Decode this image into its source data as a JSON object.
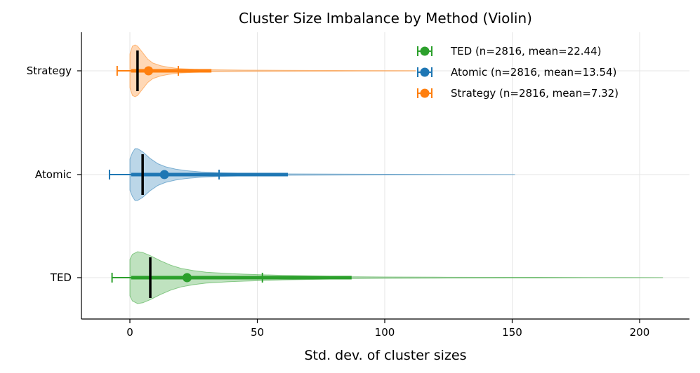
{
  "chart_data": {
    "type": "violin",
    "orientation": "horizontal",
    "title": "Cluster Size Imbalance by Method (Violin)",
    "xlabel": "Std. dev. of cluster sizes",
    "ylabel": "",
    "xlim": [
      -19,
      220
    ],
    "xticks": [
      0,
      50,
      100,
      150,
      200
    ],
    "grid": true,
    "legend_position": "top-right",
    "series": [
      {
        "name": "TED",
        "color": "#2ca02c",
        "n": 2816,
        "mean": 22.44,
        "median": 8,
        "ci_low": -7,
        "ci_high": 52,
        "iqr_low": 0.5,
        "iqr_high": 87,
        "max": 209,
        "legend": "TED (n=2816, mean=22.44)",
        "density": [
          [
            0,
            0.7
          ],
          [
            1,
            0.9
          ],
          [
            3,
            1.0
          ],
          [
            5,
            0.97
          ],
          [
            8,
            0.85
          ],
          [
            12,
            0.65
          ],
          [
            16,
            0.48
          ],
          [
            20,
            0.36
          ],
          [
            25,
            0.27
          ],
          [
            30,
            0.21
          ],
          [
            40,
            0.15
          ],
          [
            50,
            0.12
          ],
          [
            60,
            0.09
          ],
          [
            70,
            0.07
          ],
          [
            80,
            0.05
          ],
          [
            87,
            0.035
          ],
          [
            100,
            0.028
          ],
          [
            120,
            0.02
          ],
          [
            150,
            0.013
          ],
          [
            180,
            0.008
          ],
          [
            209,
            0.004
          ]
        ]
      },
      {
        "name": "Atomic",
        "color": "#1f77b4",
        "n": 2816,
        "mean": 13.54,
        "median": 5,
        "ci_low": -8,
        "ci_high": 35,
        "iqr_low": 0.5,
        "iqr_high": 62,
        "max": 151,
        "legend": "Atomic (n=2816, mean=13.54)",
        "density": [
          [
            0,
            0.6
          ],
          [
            1,
            0.85
          ],
          [
            2,
            1.0
          ],
          [
            3,
            1.0
          ],
          [
            5,
            0.88
          ],
          [
            8,
            0.62
          ],
          [
            11,
            0.42
          ],
          [
            14,
            0.3
          ],
          [
            18,
            0.21
          ],
          [
            22,
            0.15
          ],
          [
            28,
            0.1
          ],
          [
            35,
            0.07
          ],
          [
            45,
            0.05
          ],
          [
            55,
            0.035
          ],
          [
            62,
            0.028
          ],
          [
            80,
            0.02
          ],
          [
            100,
            0.013
          ],
          [
            125,
            0.008
          ],
          [
            151,
            0.004
          ]
        ]
      },
      {
        "name": "Strategy",
        "color": "#ff7f0e",
        "n": 2816,
        "mean": 7.32,
        "median": 3,
        "ci_low": -5,
        "ci_high": 19,
        "iqr_low": 0.5,
        "iqr_high": 32,
        "max": 112,
        "legend": "Strategy (n=2816, mean=7.32)",
        "density": [
          [
            0,
            0.65
          ],
          [
            1,
            0.95
          ],
          [
            2,
            1.0
          ],
          [
            3,
            0.95
          ],
          [
            5,
            0.7
          ],
          [
            7,
            0.45
          ],
          [
            9,
            0.3
          ],
          [
            12,
            0.2
          ],
          [
            15,
            0.14
          ],
          [
            19,
            0.09
          ],
          [
            25,
            0.06
          ],
          [
            32,
            0.04
          ],
          [
            45,
            0.028
          ],
          [
            60,
            0.02
          ],
          [
            80,
            0.013
          ],
          [
            112,
            0.006
          ]
        ]
      }
    ]
  }
}
